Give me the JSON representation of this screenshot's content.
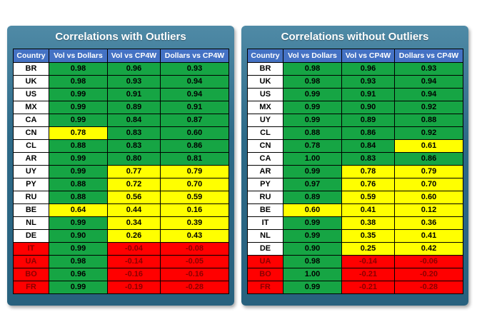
{
  "headers": [
    "Country",
    "Vol vs Dollars",
    "Vol vs CP4W",
    "Dollars vs CP4W"
  ],
  "colors": {
    "green": "#16a544",
    "yellow": "#ffff00",
    "red": "#ff0000",
    "header": "#4472c4",
    "panel": "#2d6a88"
  },
  "left": {
    "title": "Correlations with Outliers",
    "rows": [
      {
        "c": "BR",
        "v": [
          "0.98",
          "0.96",
          "0.93"
        ],
        "k": [
          "g",
          "g",
          "g"
        ]
      },
      {
        "c": "UK",
        "v": [
          "0.98",
          "0.93",
          "0.94"
        ],
        "k": [
          "g",
          "g",
          "g"
        ]
      },
      {
        "c": "US",
        "v": [
          "0.99",
          "0.91",
          "0.94"
        ],
        "k": [
          "g",
          "g",
          "g"
        ]
      },
      {
        "c": "MX",
        "v": [
          "0.99",
          "0.89",
          "0.91"
        ],
        "k": [
          "g",
          "g",
          "g"
        ]
      },
      {
        "c": "CA",
        "v": [
          "0.99",
          "0.84",
          "0.87"
        ],
        "k": [
          "g",
          "g",
          "g"
        ]
      },
      {
        "c": "CN",
        "v": [
          "0.78",
          "0.83",
          "0.60"
        ],
        "k": [
          "y",
          "g",
          "g"
        ]
      },
      {
        "c": "CL",
        "v": [
          "0.88",
          "0.83",
          "0.86"
        ],
        "k": [
          "g",
          "g",
          "g"
        ]
      },
      {
        "c": "AR",
        "v": [
          "0.99",
          "0.80",
          "0.81"
        ],
        "k": [
          "g",
          "g",
          "g"
        ]
      },
      {
        "c": "UY",
        "v": [
          "0.99",
          "0.77",
          "0.79"
        ],
        "k": [
          "g",
          "y",
          "y"
        ]
      },
      {
        "c": "PY",
        "v": [
          "0.88",
          "0.72",
          "0.70"
        ],
        "k": [
          "g",
          "y",
          "y"
        ]
      },
      {
        "c": "RU",
        "v": [
          "0.88",
          "0.56",
          "0.59"
        ],
        "k": [
          "g",
          "y",
          "y"
        ]
      },
      {
        "c": "BE",
        "v": [
          "0.64",
          "0.44",
          "0.16"
        ],
        "k": [
          "y",
          "y",
          "y"
        ]
      },
      {
        "c": "NL",
        "v": [
          "0.99",
          "0.34",
          "0.39"
        ],
        "k": [
          "g",
          "y",
          "y"
        ]
      },
      {
        "c": "DE",
        "v": [
          "0.90",
          "0.26",
          "0.43"
        ],
        "k": [
          "g",
          "y",
          "y"
        ]
      },
      {
        "c": "IT",
        "v": [
          "0.99",
          "-0.04",
          "-0.08"
        ],
        "k": [
          "g",
          "r",
          "r"
        ],
        "red": true
      },
      {
        "c": "UA",
        "v": [
          "0.98",
          "-0.14",
          "-0.05"
        ],
        "k": [
          "g",
          "r",
          "r"
        ],
        "red": true
      },
      {
        "c": "BO",
        "v": [
          "0.96",
          "-0.16",
          "-0.16"
        ],
        "k": [
          "g",
          "r",
          "r"
        ],
        "red": true
      },
      {
        "c": "FR",
        "v": [
          "0.99",
          "-0.19",
          "-0.28"
        ],
        "k": [
          "g",
          "r",
          "r"
        ],
        "red": true
      }
    ]
  },
  "right": {
    "title": "Correlations without Outliers",
    "rows": [
      {
        "c": "BR",
        "v": [
          "0.98",
          "0.96",
          "0.93"
        ],
        "k": [
          "g",
          "g",
          "g"
        ]
      },
      {
        "c": "UK",
        "v": [
          "0.98",
          "0.93",
          "0.94"
        ],
        "k": [
          "g",
          "g",
          "g"
        ]
      },
      {
        "c": "US",
        "v": [
          "0.99",
          "0.91",
          "0.94"
        ],
        "k": [
          "g",
          "g",
          "g"
        ]
      },
      {
        "c": "MX",
        "v": [
          "0.99",
          "0.90",
          "0.92"
        ],
        "k": [
          "g",
          "g",
          "g"
        ]
      },
      {
        "c": "UY",
        "v": [
          "0.99",
          "0.89",
          "0.88"
        ],
        "k": [
          "g",
          "g",
          "g"
        ]
      },
      {
        "c": "CL",
        "v": [
          "0.88",
          "0.86",
          "0.92"
        ],
        "k": [
          "g",
          "g",
          "g"
        ]
      },
      {
        "c": "CN",
        "v": [
          "0.78",
          "0.84",
          "0.61"
        ],
        "k": [
          "g",
          "g",
          "y"
        ]
      },
      {
        "c": "CA",
        "v": [
          "1.00",
          "0.83",
          "0.86"
        ],
        "k": [
          "g",
          "g",
          "g"
        ]
      },
      {
        "c": "AR",
        "v": [
          "0.99",
          "0.78",
          "0.79"
        ],
        "k": [
          "g",
          "y",
          "y"
        ]
      },
      {
        "c": "PY",
        "v": [
          "0.97",
          "0.76",
          "0.70"
        ],
        "k": [
          "g",
          "y",
          "y"
        ]
      },
      {
        "c": "RU",
        "v": [
          "0.89",
          "0.59",
          "0.60"
        ],
        "k": [
          "g",
          "y",
          "y"
        ]
      },
      {
        "c": "BE",
        "v": [
          "0.60",
          "0.41",
          "0.12"
        ],
        "k": [
          "y",
          "y",
          "y"
        ]
      },
      {
        "c": "IT",
        "v": [
          "0.99",
          "0.38",
          "0.36"
        ],
        "k": [
          "g",
          "y",
          "y"
        ]
      },
      {
        "c": "NL",
        "v": [
          "0.99",
          "0.35",
          "0.41"
        ],
        "k": [
          "g",
          "y",
          "y"
        ]
      },
      {
        "c": "DE",
        "v": [
          "0.90",
          "0.25",
          "0.42"
        ],
        "k": [
          "g",
          "y",
          "y"
        ]
      },
      {
        "c": "UA",
        "v": [
          "0.98",
          "-0.14",
          "-0.06"
        ],
        "k": [
          "g",
          "r",
          "r"
        ],
        "red": true
      },
      {
        "c": "BO",
        "v": [
          "1.00",
          "-0.21",
          "-0.20"
        ],
        "k": [
          "g",
          "r",
          "r"
        ],
        "red": true
      },
      {
        "c": "FR",
        "v": [
          "0.99",
          "-0.21",
          "-0.28"
        ],
        "k": [
          "g",
          "r",
          "r"
        ],
        "red": true
      }
    ]
  }
}
